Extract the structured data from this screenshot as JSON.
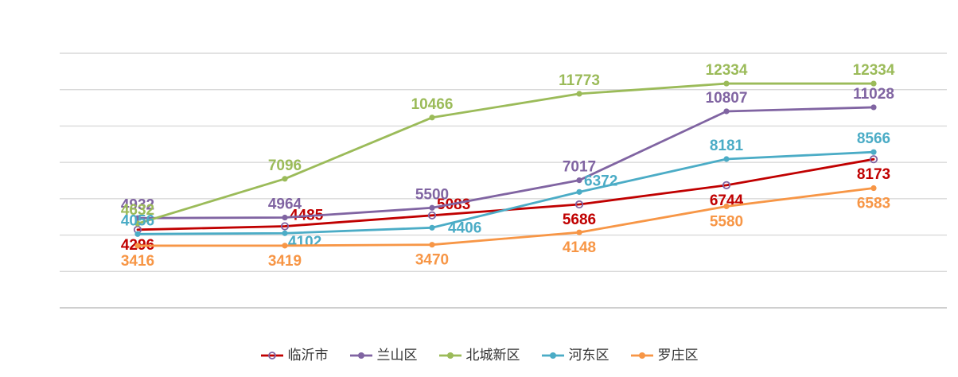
{
  "chart_data": {
    "type": "line",
    "title": "",
    "x_count": 6,
    "x_labels": [
      "",
      "",
      "",
      "",
      "",
      ""
    ],
    "ylim": [
      0,
      14000
    ],
    "y_step": 2000,
    "grid": true,
    "grid_color": "#d9d9d9",
    "axis_color": "#bfbfbf",
    "background": "#ffffff",
    "legend_position": "bottom",
    "legend_text_color": "#333333",
    "series": [
      {
        "id": "linyi-city",
        "name": "临沂市",
        "color": "#c00000",
        "marker": "ring",
        "marker_border": "#8064a2",
        "values": [
          4296,
          4485,
          5083,
          5686,
          6744,
          8173
        ],
        "label_pos": [
          "below",
          "above-right",
          "above-right",
          "below",
          "below",
          "below"
        ]
      },
      {
        "id": "lanshan-district",
        "name": "兰山区",
        "color": "#8064a2",
        "marker": "dot",
        "values": [
          4932,
          4964,
          5500,
          7017,
          10807,
          11028
        ],
        "label_pos": [
          "above",
          "above",
          "above",
          "above",
          "above",
          "above"
        ]
      },
      {
        "id": "beicheng-new-district",
        "name": "北城新区",
        "color": "#9bbb59",
        "marker": "dot",
        "values": [
          4632,
          7096,
          10466,
          11773,
          12334,
          12334
        ],
        "label_pos": [
          "above",
          "above",
          "above",
          "above",
          "above",
          "above"
        ]
      },
      {
        "id": "hedong-district",
        "name": "河东区",
        "color": "#4bacc6",
        "marker": "dot",
        "values": [
          4056,
          4102,
          4406,
          6372,
          8181,
          8566
        ],
        "label_pos": [
          "above",
          "below-right",
          "right",
          "above-right",
          "above",
          "above"
        ]
      },
      {
        "id": "luozhuang-district",
        "name": "罗庄区",
        "color": "#f79646",
        "marker": "dot",
        "values": [
          3416,
          3419,
          3470,
          4148,
          5580,
          6583
        ],
        "label_pos": [
          "below",
          "below",
          "below",
          "below",
          "below",
          "below"
        ]
      }
    ]
  }
}
